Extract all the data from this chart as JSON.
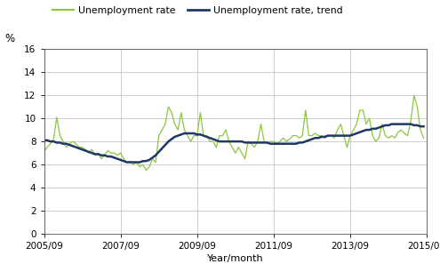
{
  "ylabel": "%",
  "xlabel": "Year/month",
  "ylim": [
    0,
    16
  ],
  "yticks": [
    0,
    2,
    4,
    6,
    8,
    10,
    12,
    14,
    16
  ],
  "xtick_labels": [
    "2005/09",
    "2007/09",
    "2009/09",
    "2011/09",
    "2013/09",
    "2015/09"
  ],
  "legend_labels": [
    "Unemployment rate",
    "Unemployment rate, trend"
  ],
  "line_color_raw": "#8dc63f",
  "line_color_trend": "#1f3864",
  "background_color": "#ffffff",
  "grid_color": "#bbbbbb",
  "unemployment_rate": [
    7.1,
    7.5,
    7.8,
    8.2,
    10.1,
    8.5,
    8.0,
    7.5,
    7.8,
    8.0,
    7.8,
    7.5,
    7.5,
    7.3,
    7.0,
    7.3,
    6.8,
    7.0,
    6.5,
    6.8,
    7.2,
    7.0,
    7.0,
    6.8,
    7.0,
    6.5,
    6.2,
    6.3,
    6.0,
    6.2,
    5.8,
    6.0,
    5.5,
    5.8,
    6.5,
    6.2,
    8.5,
    9.0,
    9.5,
    11.0,
    10.5,
    9.5,
    9.0,
    10.5,
    9.0,
    8.5,
    8.0,
    8.5,
    8.5,
    10.5,
    8.5,
    8.5,
    8.0,
    8.0,
    7.5,
    8.5,
    8.5,
    9.0,
    8.0,
    7.5,
    7.0,
    7.5,
    7.0,
    6.5,
    8.0,
    7.8,
    7.5,
    8.0,
    9.5,
    8.0,
    7.8,
    8.0,
    8.0,
    7.8,
    8.0,
    8.3,
    8.0,
    8.2,
    8.5,
    8.5,
    8.3,
    8.5,
    10.7,
    8.5,
    8.5,
    8.7,
    8.5,
    8.5,
    8.3,
    8.5,
    8.5,
    8.3,
    9.0,
    9.5,
    8.5,
    7.5,
    8.5,
    9.0,
    9.5,
    10.7,
    10.7,
    9.5,
    10.0,
    8.5,
    8.0,
    8.3,
    9.5,
    8.5,
    8.3,
    8.5,
    8.3,
    8.8,
    9.0,
    8.7,
    8.5,
    9.8,
    12.0,
    11.0,
    9.0,
    8.3
  ],
  "unemployment_trend": [
    8.1,
    8.1,
    8.0,
    8.0,
    7.9,
    7.9,
    7.8,
    7.8,
    7.7,
    7.6,
    7.5,
    7.4,
    7.3,
    7.2,
    7.1,
    7.0,
    6.9,
    6.9,
    6.8,
    6.8,
    6.7,
    6.7,
    6.6,
    6.5,
    6.4,
    6.3,
    6.2,
    6.2,
    6.2,
    6.2,
    6.2,
    6.3,
    6.3,
    6.4,
    6.6,
    6.8,
    7.1,
    7.4,
    7.7,
    8.0,
    8.2,
    8.4,
    8.5,
    8.6,
    8.7,
    8.7,
    8.7,
    8.7,
    8.6,
    8.6,
    8.5,
    8.4,
    8.3,
    8.2,
    8.1,
    8.0,
    8.0,
    8.0,
    8.0,
    8.0,
    8.0,
    8.0,
    8.0,
    7.9,
    7.9,
    7.9,
    7.9,
    7.9,
    7.9,
    7.9,
    7.9,
    7.8,
    7.8,
    7.8,
    7.8,
    7.8,
    7.8,
    7.8,
    7.8,
    7.8,
    7.9,
    7.9,
    8.0,
    8.1,
    8.2,
    8.3,
    8.3,
    8.4,
    8.4,
    8.5,
    8.5,
    8.5,
    8.5,
    8.5,
    8.5,
    8.5,
    8.5,
    8.6,
    8.7,
    8.8,
    8.9,
    9.0,
    9.0,
    9.1,
    9.1,
    9.2,
    9.3,
    9.4,
    9.4,
    9.5,
    9.5,
    9.5,
    9.5,
    9.5,
    9.5,
    9.5,
    9.4,
    9.4,
    9.3,
    9.3
  ]
}
